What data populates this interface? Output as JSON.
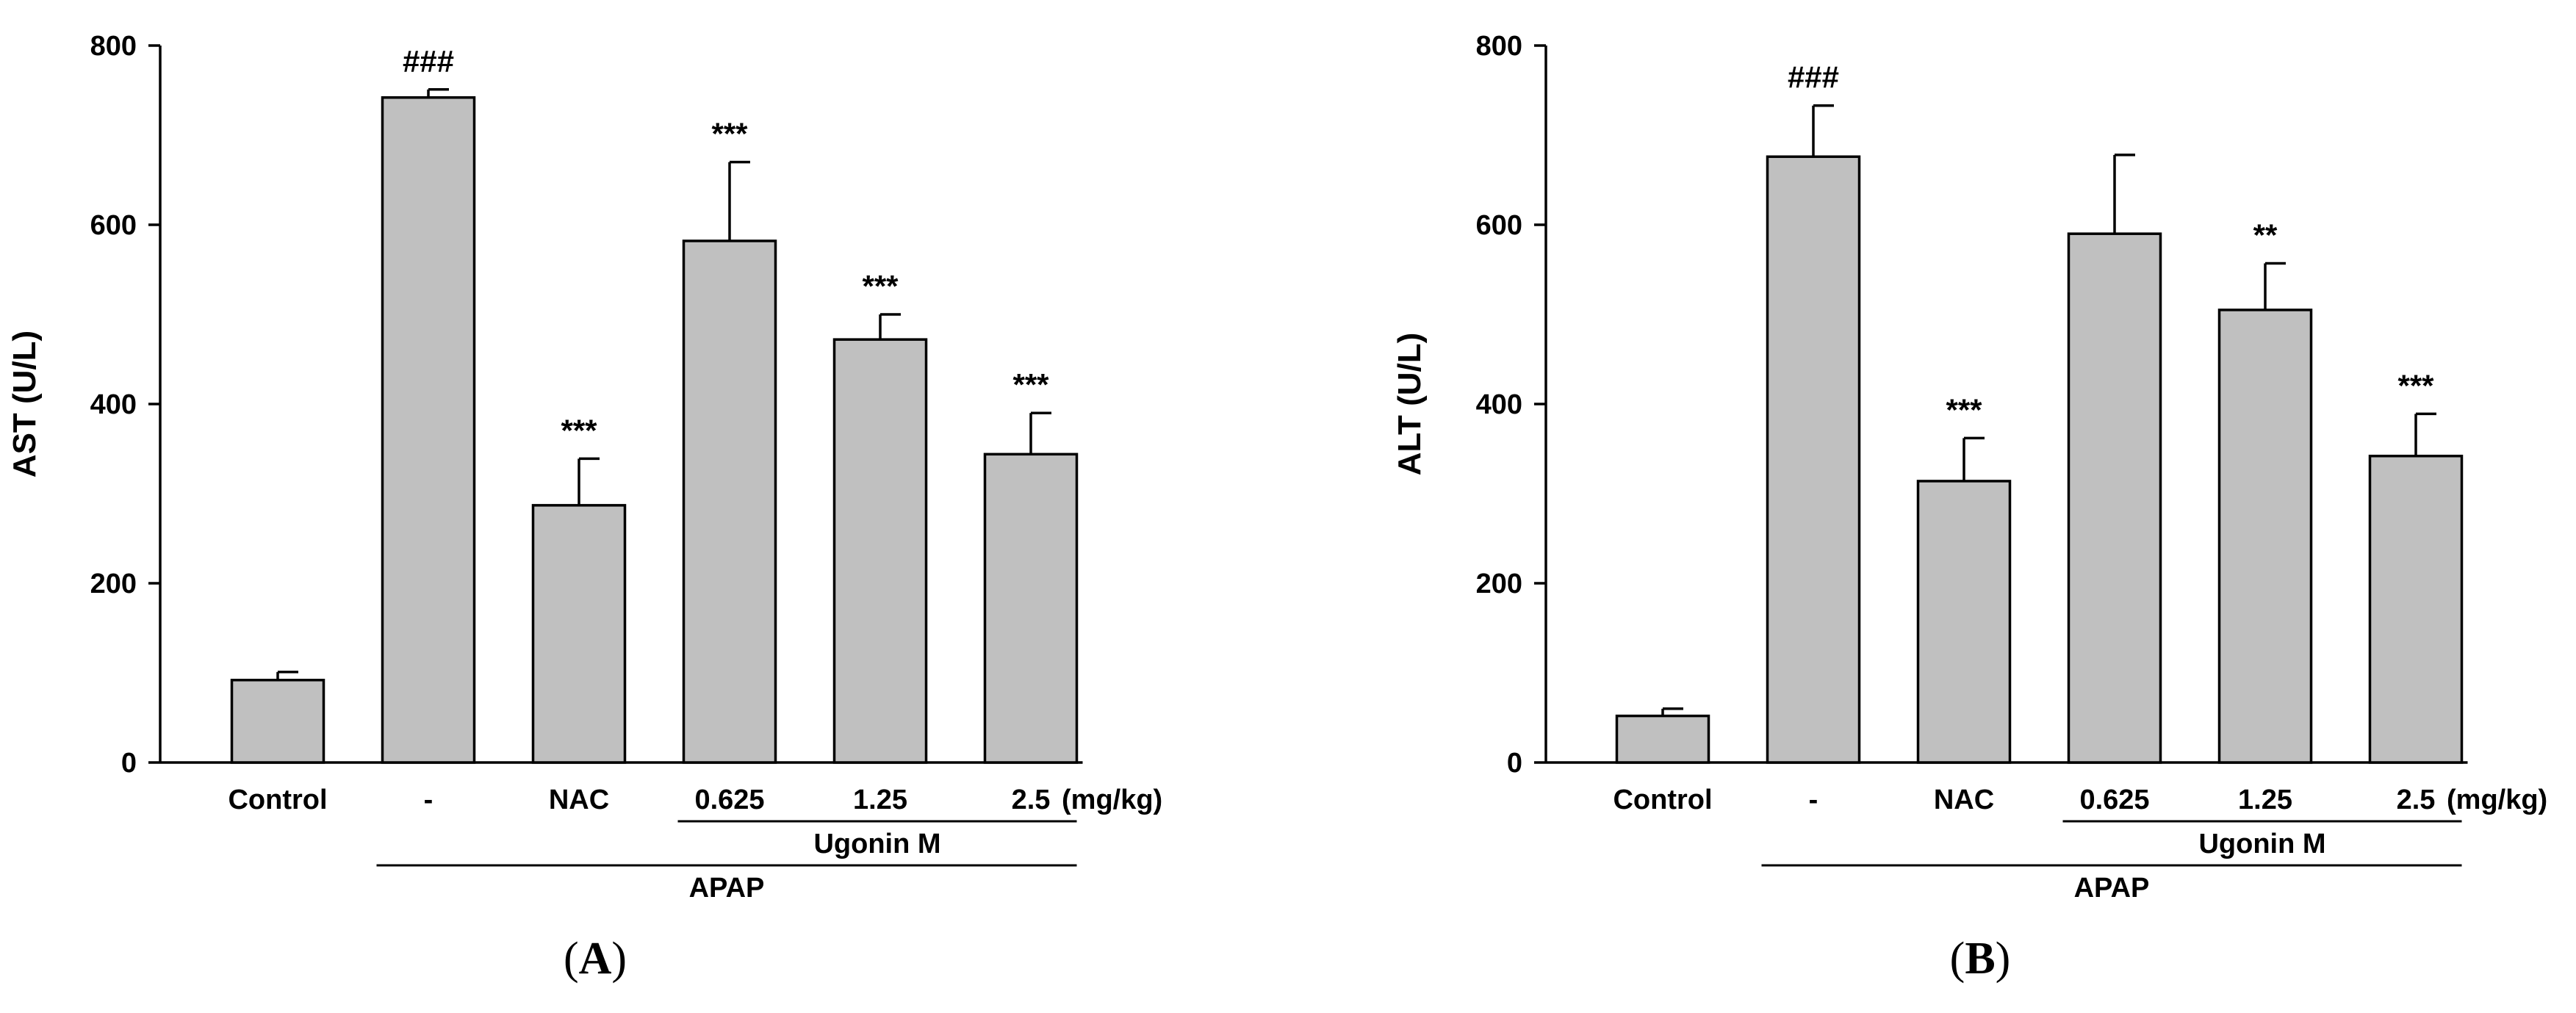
{
  "chart_data": [
    {
      "type": "bar",
      "panel": "A",
      "panel_letter": "A",
      "ylabel": "AST (U/L)",
      "ylim": [
        0,
        800
      ],
      "yticks": [
        0,
        200,
        400,
        600,
        800
      ],
      "categories": [
        "Control",
        "-",
        "NAC",
        "0.625",
        "1.25",
        "2.5"
      ],
      "values": [
        92,
        742,
        287,
        582,
        472,
        344
      ],
      "errors": [
        9,
        9,
        52,
        88,
        28,
        46
      ],
      "annotations": [
        "",
        "###",
        "***",
        "***",
        "***",
        "***"
      ],
      "unit_label": "(mg/kg)",
      "groups": {
        "ugonin": {
          "label": "Ugonin M",
          "from": 3,
          "to": 5
        },
        "apap": {
          "label": "APAP",
          "from": 1,
          "to": 5
        }
      }
    },
    {
      "type": "bar",
      "panel": "B",
      "panel_letter": "B",
      "ylabel": "ALT (U/L)",
      "ylim": [
        0,
        800
      ],
      "yticks": [
        0,
        200,
        400,
        600,
        800
      ],
      "categories": [
        "Control",
        "-",
        "NAC",
        "0.625",
        "1.25",
        "2.5"
      ],
      "values": [
        52,
        676,
        314,
        590,
        505,
        342
      ],
      "errors": [
        8,
        57,
        48,
        88,
        52,
        47
      ],
      "annotations": [
        "",
        "###",
        "***",
        "",
        "**",
        "***"
      ],
      "unit_label": "(mg/kg)",
      "groups": {
        "ugonin": {
          "label": "Ugonin M",
          "from": 3,
          "to": 5
        },
        "apap": {
          "label": "APAP",
          "from": 1,
          "to": 5
        }
      }
    }
  ]
}
